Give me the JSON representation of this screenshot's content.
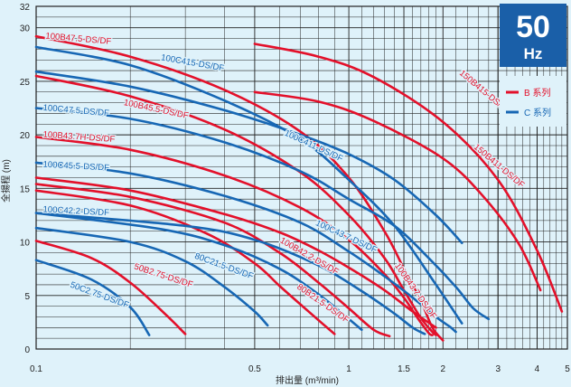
{
  "chart_data": {
    "type": "line",
    "x_scale": "log",
    "xlim": [
      0.1,
      5
    ],
    "ylim": [
      0,
      32
    ],
    "grid": true,
    "xlabel": "排出量 (m³/min)",
    "ylabel": "全揚程 (m)",
    "x_ticks": [
      "0.1",
      "0.5",
      "1",
      "1.5",
      "2",
      "3",
      "4",
      "5"
    ],
    "y_ticks": [
      "0",
      "5",
      "10",
      "15",
      "20",
      "25",
      "30",
      "32"
    ],
    "badge": {
      "number": "50",
      "unit": "Hz"
    },
    "legend": [
      {
        "label": "B 系列",
        "color": "#e3102a"
      },
      {
        "label": "C 系列",
        "color": "#1767b4"
      }
    ],
    "colors": {
      "B": "#e3102a",
      "C": "#1767b4",
      "background": "#dff2fa",
      "badge": "#1a5fa8"
    },
    "series": [
      {
        "name": "100B47.5-DS/DF",
        "group": "B",
        "x": [
          0.1,
          0.2,
          0.4,
          0.7,
          1.0,
          1.3,
          1.5,
          1.7,
          1.85,
          2.0
        ],
        "y": [
          29.2,
          27.3,
          24.2,
          20.3,
          16.0,
          11.0,
          7.5,
          4.5,
          2.0,
          0.8
        ]
      },
      {
        "name": "100B45.5-DS/DF",
        "group": "B",
        "x": [
          0.1,
          0.2,
          0.4,
          0.7,
          1.0,
          1.3,
          1.5,
          1.7,
          1.85,
          1.9
        ],
        "y": [
          25.5,
          23.6,
          20.5,
          16.5,
          12.5,
          8.5,
          5.5,
          2.9,
          1.6,
          1.3
        ]
      },
      {
        "name": "100B43.7H-DS/DF",
        "group": "B",
        "x": [
          0.1,
          0.2,
          0.4,
          0.7,
          1.0,
          1.3,
          1.5,
          1.65,
          1.8,
          1.85
        ],
        "y": [
          19.8,
          18.6,
          16.2,
          13.2,
          10.2,
          7.0,
          4.8,
          3.0,
          1.5,
          1.3
        ]
      },
      {
        "name": "100B42.2-DS/DF",
        "group": "B",
        "x": [
          0.1,
          0.2,
          0.4,
          0.6,
          0.8,
          1.0,
          1.2,
          1.35
        ],
        "y": [
          15.4,
          14.2,
          11.8,
          9.0,
          6.2,
          3.8,
          1.8,
          1.2
        ]
      },
      {
        "name": "80B21.5-DS/DF",
        "group": "B",
        "x": [
          0.1,
          0.2,
          0.35,
          0.5,
          0.6,
          0.75,
          0.9
        ],
        "y": [
          14.8,
          13.4,
          10.8,
          8.0,
          5.9,
          3.4,
          1.4
        ]
      },
      {
        "name": "50B2.75-DS/DF",
        "group": "B",
        "x": [
          0.1,
          0.15,
          0.2,
          0.26,
          0.3
        ],
        "y": [
          10.1,
          8.5,
          6.2,
          3.2,
          1.4
        ]
      },
      {
        "name": "150B415-DS/DF",
        "group": "B",
        "x": [
          0.5,
          0.8,
          1.2,
          2.0,
          3.0,
          4.0,
          4.8
        ],
        "y": [
          28.5,
          27.3,
          25.4,
          21.2,
          15.8,
          9.2,
          3.5
        ]
      },
      {
        "name": "150B411-DS/DF",
        "group": "B",
        "x": [
          0.5,
          0.8,
          1.2,
          2.0,
          2.7,
          3.5,
          4.1
        ],
        "y": [
          24.0,
          23.1,
          21.3,
          17.8,
          14.2,
          9.8,
          5.5
        ]
      },
      {
        "name": "100B43.7-DS/DF",
        "group": "B",
        "x": [
          0.1,
          0.2,
          0.4,
          0.6,
          0.8,
          1.0,
          1.3,
          1.6,
          1.9
        ],
        "y": [
          16.0,
          14.8,
          12.6,
          10.9,
          9.2,
          7.6,
          5.5,
          3.5,
          2.0
        ]
      },
      {
        "name": "100C415-DS/DF",
        "group": "C",
        "x": [
          0.1,
          0.2,
          0.4,
          0.7,
          1.0,
          1.4,
          1.9,
          2.3
        ],
        "y": [
          28.2,
          26.5,
          23.2,
          19.6,
          15.8,
          11.5,
          6.0,
          2.4
        ]
      },
      {
        "name": "100C411-DS/DF",
        "group": "C",
        "x": [
          0.1,
          0.2,
          0.4,
          0.7,
          1.0,
          1.4,
          1.9,
          2.3
        ],
        "y": [
          25.9,
          24.5,
          22.3,
          20.0,
          18.2,
          15.8,
          12.5,
          9.9
        ]
      },
      {
        "name": "100C47.5-DS/DF",
        "group": "C",
        "x": [
          0.1,
          0.2,
          0.4,
          0.7,
          1.0,
          1.4,
          1.8,
          2.2,
          2.5,
          2.8
        ],
        "y": [
          22.5,
          21.5,
          19.3,
          16.6,
          14.0,
          11.5,
          8.5,
          5.8,
          3.8,
          2.8
        ]
      },
      {
        "name": "100C45.5-DS/DF",
        "group": "C",
        "x": [
          0.1,
          0.2,
          0.4,
          0.7,
          1.0,
          1.3,
          1.6,
          1.9,
          2.1,
          2.2
        ],
        "y": [
          17.4,
          16.4,
          14.3,
          11.8,
          9.1,
          6.8,
          4.8,
          3.0,
          2.1,
          1.6
        ]
      },
      {
        "name": "100C43.7-DS/DF",
        "group": "C",
        "x": [
          0.1,
          0.3,
          0.5,
          0.8,
          1.1,
          1.4,
          1.6,
          1.75
        ],
        "y": [
          12.7,
          11.5,
          10.2,
          7.8,
          5.4,
          3.3,
          2.0,
          1.4
        ]
      },
      {
        "name": "100C42.2-DS/DF",
        "group": "C",
        "x": [
          0.1,
          0.25,
          0.4,
          0.6,
          0.8,
          1.0,
          1.1
        ],
        "y": [
          12.7,
          11.2,
          9.7,
          7.5,
          5.1,
          2.8,
          1.8
        ]
      },
      {
        "name": "80C21.5-DS/DF",
        "group": "C",
        "x": [
          0.1,
          0.2,
          0.3,
          0.4,
          0.5,
          0.55
        ],
        "y": [
          11.3,
          10.0,
          8.2,
          5.8,
          3.5,
          2.2
        ]
      },
      {
        "name": "50C2.75-DS/DF",
        "group": "C",
        "x": [
          0.1,
          0.15,
          0.2,
          0.23
        ],
        "y": [
          8.3,
          6.5,
          3.9,
          1.3
        ]
      }
    ],
    "labels": [
      {
        "text": "100B47.5-DS/DF",
        "group": "B",
        "x": 0.107,
        "y": 29.0,
        "angle": 5
      },
      {
        "text": "100C415-DS/DF",
        "group": "C",
        "x": 0.25,
        "y": 27.0,
        "angle": 10
      },
      {
        "text": "100C47.5-DS/DF",
        "group": "C",
        "x": 0.105,
        "y": 22.3,
        "angle": 5
      },
      {
        "text": "100B45.5-DS/DF",
        "group": "B",
        "x": 0.19,
        "y": 22.8,
        "angle": 12
      },
      {
        "text": "100B43.7H-DS/DF",
        "group": "B",
        "x": 0.105,
        "y": 19.8,
        "angle": 4
      },
      {
        "text": "100C411-DS/DF",
        "group": "C",
        "x": 0.62,
        "y": 20.0,
        "angle": 25
      },
      {
        "text": "150B415-DS/DF",
        "group": "B",
        "x": 2.25,
        "y": 25.7,
        "angle": 40
      },
      {
        "text": "150B411-DS/DF",
        "group": "B",
        "x": 2.5,
        "y": 18.8,
        "angle": 40
      },
      {
        "text": "100C45.5-DS/DF",
        "group": "C",
        "x": 0.105,
        "y": 17.0,
        "angle": 3
      },
      {
        "text": "100C42.2-DS/DF",
        "group": "C",
        "x": 0.105,
        "y": 12.8,
        "angle": 3
      },
      {
        "text": "100C43.7-DS/DF",
        "group": "C",
        "x": 0.78,
        "y": 11.6,
        "angle": 25
      },
      {
        "text": "100B42.2-DS/DF",
        "group": "B",
        "x": 0.6,
        "y": 10.0,
        "angle": 30
      },
      {
        "text": "80C21.5-DS/DF",
        "group": "C",
        "x": 0.32,
        "y": 8.5,
        "angle": 20
      },
      {
        "text": "100B43.7-DS/DF",
        "group": "B",
        "x": 1.4,
        "y": 7.8,
        "angle": 55
      },
      {
        "text": "50B2.75-DS/DF",
        "group": "B",
        "x": 0.205,
        "y": 7.5,
        "angle": 18
      },
      {
        "text": "80B21.5-DS/DF",
        "group": "B",
        "x": 0.68,
        "y": 5.7,
        "angle": 35
      },
      {
        "text": "50C2.75-DS/DF",
        "group": "C",
        "x": 0.128,
        "y": 5.8,
        "angle": 20
      }
    ]
  }
}
